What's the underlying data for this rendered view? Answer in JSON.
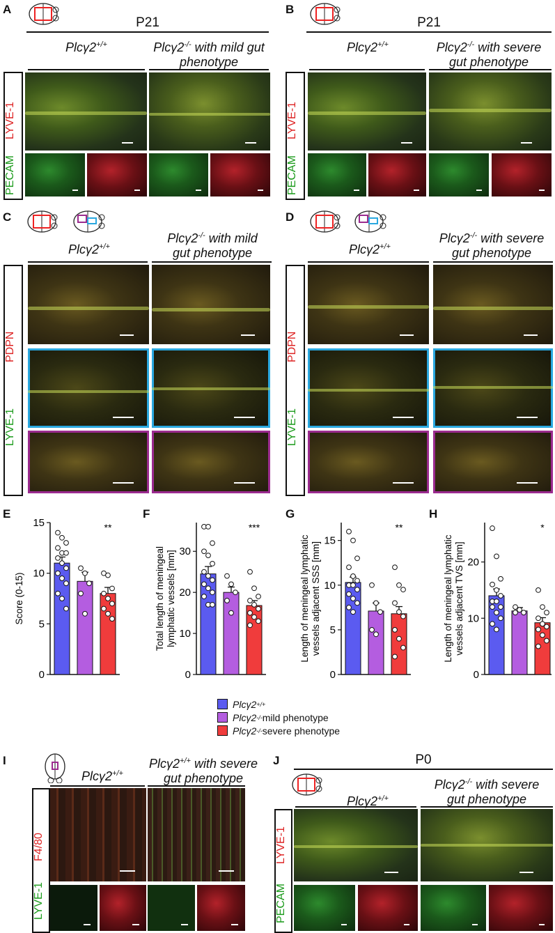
{
  "panels": {
    "A": {
      "letter": "A",
      "age": "P21",
      "geno_wt": "Plcγ2",
      "geno_wt_sup": "+/+",
      "geno_mut": "Plcγ2",
      "geno_mut_sup": "-/-",
      "geno_mut_rest": " with mild gut",
      "geno_mut_line2": "phenotype",
      "stain_red": "LYVE-1",
      "stain_green": "PECAM"
    },
    "B": {
      "letter": "B",
      "age": "P21",
      "geno_wt": "Plcγ2",
      "geno_wt_sup": "+/+",
      "geno_mut": "Plcγ2",
      "geno_mut_sup": "-/-",
      "geno_mut_rest": " with severe",
      "geno_mut_line2": "gut phenotype",
      "stain_red": "LYVE-1",
      "stain_green": "PECAM"
    },
    "C": {
      "letter": "C",
      "geno_wt": "Plcγ2",
      "geno_wt_sup": "+/+",
      "geno_mut": "Plcγ2",
      "geno_mut_sup": "-/-",
      "geno_mut_rest": " with mild",
      "geno_mut_line2": "gut phenotype",
      "stain_red": "PDPN",
      "stain_green": "LYVE-1"
    },
    "D": {
      "letter": "D",
      "geno_wt": "Plcγ2",
      "geno_wt_sup": "+/+",
      "geno_mut": "Plcγ2",
      "geno_mut_sup": "-/-",
      "geno_mut_rest": " with severe",
      "geno_mut_line2": "gut phenotype",
      "stain_red": "PDPN",
      "stain_green": "LYVE-1"
    },
    "I": {
      "letter": "I",
      "geno_wt": "Plcγ2",
      "geno_wt_sup": "+/+",
      "geno_mut": "Plcγ2",
      "geno_mut_sup": "+/+",
      "geno_mut_rest": " with severe",
      "geno_mut_line2": "gut phenotype",
      "stain_red": "F4/80",
      "stain_green": "LYVE-1"
    },
    "J": {
      "letter": "J",
      "age": "P0",
      "geno_wt": "Plcγ2",
      "geno_wt_sup": "+/+",
      "geno_mut": "Plcγ2",
      "geno_mut_sup": "-/-",
      "geno_mut_rest": " with severe",
      "geno_mut_line2": "gut phenotype",
      "stain_red": "LYVE-1",
      "stain_green": "PECAM"
    }
  },
  "legend": [
    {
      "geno": "Plcγ2",
      "sup": "+/+",
      "rest": "",
      "color": "#5b5bf0"
    },
    {
      "geno": "Plcγ2",
      "sup": "-/-",
      "rest": " mild phenotype",
      "color": "#b45de0"
    },
    {
      "geno": "Plcγ2",
      "sup": "-/-",
      "rest": " severe phenotype",
      "color": "#f03c3c"
    }
  ],
  "chart_data": [
    {
      "panel": "E",
      "type": "bar",
      "ylabel": "Score (0-15)",
      "ylim": [
        0,
        15
      ],
      "yticks": [
        0,
        5,
        10,
        15
      ],
      "categories": [
        "Plcγ2+/+",
        "Plcγ2-/- mild phenotype",
        "Plcγ2-/- severe phenotype"
      ],
      "values": [
        11.0,
        9.2,
        8.0
      ],
      "errors": [
        0.6,
        0.9,
        0.6
      ],
      "significance": [
        "",
        "",
        "**"
      ],
      "points": [
        [
          14,
          13.5,
          13,
          12.5,
          12,
          12,
          11.5,
          11,
          10.5,
          10,
          9.5,
          9,
          8,
          7.5,
          6.5
        ],
        [
          10.5,
          10,
          9,
          8,
          6
        ],
        [
          10,
          9.8,
          8.5,
          8,
          7.5,
          7,
          6.5,
          6,
          5.5
        ]
      ]
    },
    {
      "panel": "F",
      "type": "bar",
      "ylabel": "Total length of meningeal lymphatic vessels [mm]",
      "ylim": [
        0,
        37
      ],
      "yticks": [
        0,
        10,
        20,
        30
      ],
      "categories": [
        "Plcγ2+/+",
        "Plcγ2-/- mild phenotype",
        "Plcγ2-/- severe phenotype"
      ],
      "values": [
        24.5,
        20.0,
        16.8
      ],
      "errors": [
        1.8,
        1.3,
        1.2
      ],
      "significance": [
        "",
        "",
        "***"
      ],
      "points": [
        [
          36,
          36,
          32,
          30,
          29,
          27,
          25,
          24,
          23,
          22,
          21,
          20,
          19,
          17,
          17
        ],
        [
          24,
          22,
          20,
          18,
          15
        ],
        [
          25,
          21,
          19,
          18,
          17,
          16,
          15,
          14,
          13,
          12
        ]
      ]
    },
    {
      "panel": "G",
      "type": "bar",
      "ylabel": "Length of meningeal lymphatic vessels adjacent SSS [mm]",
      "ylim": [
        0,
        17
      ],
      "yticks": [
        0,
        5,
        10,
        15
      ],
      "categories": [
        "Plcγ2+/+",
        "Plcγ2-/- mild phenotype",
        "Plcγ2-/- severe phenotype"
      ],
      "values": [
        10.3,
        7.1,
        6.8
      ],
      "errors": [
        0.6,
        0.9,
        0.8
      ],
      "significance": [
        "",
        "",
        "**"
      ],
      "points": [
        [
          16,
          15,
          13,
          12,
          11,
          10.5,
          10,
          10,
          9.5,
          9,
          8.5,
          8,
          7.5,
          7
        ],
        [
          10,
          8,
          7,
          5,
          4.5
        ],
        [
          12,
          10,
          9.5,
          8,
          7,
          6.5,
          5,
          4,
          3,
          2
        ]
      ]
    },
    {
      "panel": "H",
      "type": "bar",
      "ylabel": "Length of meningeal lymphatic vessels adjacent TVS [mm]",
      "ylim": [
        0,
        27
      ],
      "yticks": [
        0,
        10,
        20
      ],
      "categories": [
        "Plcγ2+/+",
        "Plcγ2-/- mild phenotype",
        "Plcγ2-/- severe phenotype"
      ],
      "values": [
        14.0,
        11.3,
        9.2
      ],
      "errors": [
        1.2,
        0.6,
        0.9
      ],
      "significance": [
        "",
        "",
        "*"
      ],
      "points": [
        [
          26,
          21,
          17,
          16,
          15,
          14,
          13,
          13,
          12,
          12,
          11,
          10,
          9,
          8
        ],
        [
          12,
          11.5,
          11,
          11
        ],
        [
          15,
          12,
          11,
          10,
          9,
          8.5,
          8,
          7,
          6,
          5
        ]
      ]
    }
  ],
  "chart_labels": {
    "E": "E",
    "F": "F",
    "G": "G",
    "H": "H"
  }
}
